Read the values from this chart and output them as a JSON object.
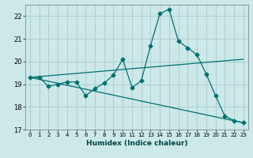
{
  "title": "",
  "xlabel": "Humidex (Indice chaleur)",
  "ylabel": "",
  "bg_color": "#cce8e8",
  "grid_color": "#aacfcf",
  "line_color": "#007070",
  "ylim": [
    17,
    22.5
  ],
  "xlim": [
    -0.5,
    23.5
  ],
  "yticks": [
    17,
    18,
    19,
    20,
    21,
    22
  ],
  "xticks": [
    0,
    1,
    2,
    3,
    4,
    5,
    6,
    7,
    8,
    9,
    10,
    11,
    12,
    13,
    14,
    15,
    16,
    17,
    18,
    19,
    20,
    21,
    22,
    23
  ],
  "line1_x": [
    0,
    1,
    2,
    3,
    4,
    5,
    6,
    7,
    8,
    9,
    10,
    11,
    12,
    13,
    14,
    15,
    16,
    17,
    18,
    19,
    20,
    21,
    22,
    23
  ],
  "line1_y": [
    19.3,
    19.3,
    18.9,
    19.0,
    19.1,
    19.1,
    18.5,
    18.8,
    19.05,
    19.4,
    20.1,
    18.85,
    19.15,
    20.7,
    22.1,
    22.3,
    20.9,
    20.6,
    20.3,
    19.45,
    18.5,
    17.6,
    17.4,
    17.3
  ],
  "line2_x": [
    0,
    23
  ],
  "line2_y": [
    19.3,
    20.1
  ],
  "line3_x": [
    0,
    23
  ],
  "line3_y": [
    19.3,
    17.3
  ],
  "marker_size": 2.5,
  "lw": 0.9
}
